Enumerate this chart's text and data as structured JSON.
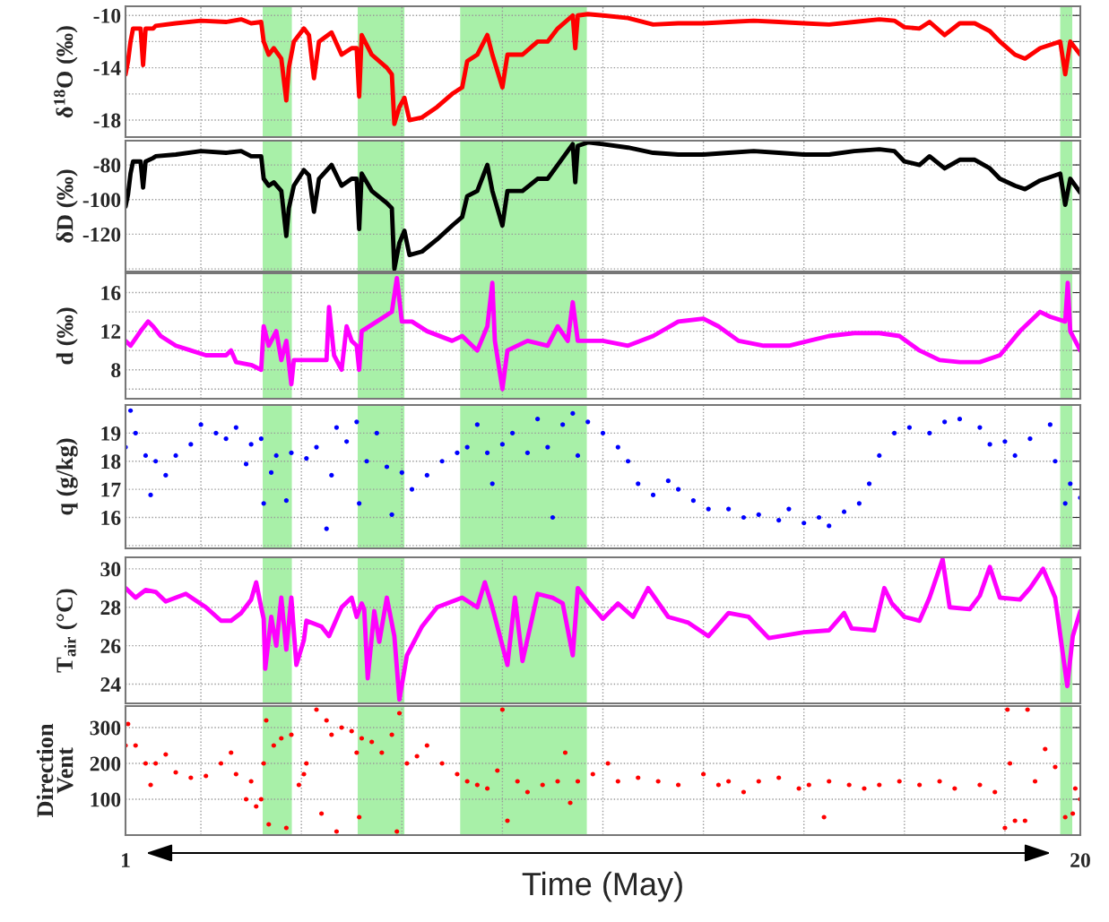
{
  "chart_data": [
    {
      "type": "line",
      "ylabel": "δ$^{18}$O (‰)",
      "xlim": [
        1,
        20
      ],
      "xticks": [
        {
          "value": 2.5,
          "label": null
        },
        {
          "value": 4.5,
          "label": null
        },
        {
          "value": 6.5,
          "label": null
        },
        {
          "value": 8.5,
          "label": null
        },
        {
          "value": 10.5,
          "label": null
        },
        {
          "value": 12.5,
          "label": null
        },
        {
          "value": 14.5,
          "label": null
        },
        {
          "value": 16.5,
          "label": null
        },
        {
          "value": 18.5,
          "label": null
        }
      ],
      "ylim": [
        -19.3,
        -9.3
      ],
      "yticks": [
        -18,
        {
          "value": -16,
          "label": null
        },
        -14,
        {
          "value": -12,
          "label": null
        },
        -10
      ],
      "grid": true,
      "tick_labels": "y",
      "line_style": "solid",
      "bands": [
        {
          "axis": "x",
          "from": 3.73,
          "to": 4.31,
          "label": null,
          "color": "#a8f0a8"
        },
        {
          "axis": "x",
          "from": 5.62,
          "to": 6.55,
          "label": null,
          "color": "#a8f0a8"
        },
        {
          "axis": "x",
          "from": 7.66,
          "to": 10.18,
          "label": null,
          "color": "#a8f0a8"
        },
        {
          "axis": "x",
          "from": 19.6,
          "to": 19.84,
          "label": null,
          "color": "#a8f0a8"
        }
      ],
      "x": [
        1.0,
        1.05,
        1.1,
        1.15,
        1.3,
        1.35,
        1.4,
        1.55,
        1.6,
        2.0,
        2.5,
        3.0,
        3.3,
        3.5,
        3.7,
        3.75,
        3.85,
        3.95,
        4.1,
        4.2,
        4.25,
        4.35,
        4.55,
        4.65,
        4.75,
        4.85,
        5.1,
        5.3,
        5.5,
        5.6,
        5.65,
        5.7,
        5.9,
        6.2,
        6.3,
        6.35,
        6.45,
        6.55,
        6.65,
        6.9,
        7.2,
        7.5,
        7.7,
        7.8,
        8.0,
        8.2,
        8.3,
        8.5,
        8.6,
        8.9,
        9.2,
        9.4,
        9.6,
        9.9,
        9.95,
        10.0,
        10.2,
        10.5,
        11,
        11.5,
        12,
        12.5,
        13,
        13.5,
        14,
        14.5,
        15,
        15.5,
        16,
        16.3,
        16.5,
        16.8,
        17.0,
        17.3,
        17.6,
        17.9,
        18.2,
        18.4,
        18.7,
        18.9,
        19.2,
        19.6,
        19.7,
        19.8,
        20.0
      ],
      "series": [
        {
          "color": "#ff0000",
          "values": [
            -14.5,
            -13.5,
            -12,
            -11,
            -11,
            -13.8,
            -11,
            -11,
            -10.8,
            -10.6,
            -10.4,
            -10.5,
            -10.3,
            -10.6,
            -10.5,
            -12,
            -13,
            -12.5,
            -13.3,
            -16.5,
            -14,
            -12,
            -11,
            -11.5,
            -14.8,
            -12,
            -11.3,
            -13,
            -12.5,
            -12.5,
            -16.2,
            -11.5,
            -13,
            -14,
            -14.5,
            -18.3,
            -17,
            -16.3,
            -18,
            -17.8,
            -17,
            -16,
            -15.5,
            -13.5,
            -13,
            -11.5,
            -13,
            -15.5,
            -13,
            -13,
            -12,
            -12,
            -11,
            -10,
            -12.5,
            -10,
            -9.9,
            -10,
            -10.2,
            -10.7,
            -10.6,
            -10.6,
            -10.5,
            -10.4,
            -10.5,
            -10.6,
            -10.7,
            -10.5,
            -10.3,
            -10.4,
            -10.9,
            -11,
            -10.5,
            -11.5,
            -10.6,
            -10.6,
            -11.2,
            -12,
            -13,
            -13.3,
            -12.5,
            -12,
            -14.5,
            -12,
            -13
          ]
        }
      ]
    },
    {
      "type": "line",
      "ylabel": "δD (‰)",
      "xlim": [
        1,
        20
      ],
      "xticks": [
        {
          "value": 2.5,
          "label": null
        },
        {
          "value": 4.5,
          "label": null
        },
        {
          "value": 6.5,
          "label": null
        },
        {
          "value": 8.5,
          "label": null
        },
        {
          "value": 10.5,
          "label": null
        },
        {
          "value": 12.5,
          "label": null
        },
        {
          "value": 14.5,
          "label": null
        },
        {
          "value": 16.5,
          "label": null
        },
        {
          "value": 18.5,
          "label": null
        }
      ],
      "ylim": [
        -141.5,
        -66
      ],
      "yticks": [
        {
          "value": -140,
          "label": null
        },
        -120,
        -100,
        -80
      ],
      "grid": true,
      "tick_labels": "y",
      "line_style": "solid",
      "bands": [
        {
          "axis": "x",
          "from": 3.73,
          "to": 4.31,
          "label": null,
          "color": "#a8f0a8"
        },
        {
          "axis": "x",
          "from": 5.62,
          "to": 6.55,
          "label": null,
          "color": "#a8f0a8"
        },
        {
          "axis": "x",
          "from": 7.66,
          "to": 10.18,
          "label": null,
          "color": "#a8f0a8"
        },
        {
          "axis": "x",
          "from": 19.6,
          "to": 19.84,
          "label": null,
          "color": "#a8f0a8"
        }
      ],
      "x": [
        1.0,
        1.05,
        1.1,
        1.15,
        1.3,
        1.35,
        1.4,
        1.55,
        1.6,
        2.0,
        2.5,
        3.0,
        3.3,
        3.5,
        3.7,
        3.75,
        3.85,
        3.95,
        4.1,
        4.2,
        4.25,
        4.35,
        4.55,
        4.65,
        4.75,
        4.85,
        5.1,
        5.3,
        5.5,
        5.6,
        5.65,
        5.7,
        5.9,
        6.2,
        6.3,
        6.35,
        6.45,
        6.55,
        6.65,
        6.9,
        7.2,
        7.5,
        7.7,
        7.8,
        8.0,
        8.2,
        8.3,
        8.5,
        8.6,
        8.9,
        9.2,
        9.4,
        9.6,
        9.9,
        9.95,
        10.0,
        10.2,
        10.5,
        11,
        11.5,
        12,
        12.5,
        13,
        13.5,
        14,
        14.5,
        15,
        15.5,
        16,
        16.3,
        16.5,
        16.8,
        17.0,
        17.3,
        17.6,
        17.9,
        18.2,
        18.4,
        18.7,
        18.9,
        19.2,
        19.6,
        19.7,
        19.8,
        20.0
      ],
      "series": [
        {
          "color": "#000000",
          "values": [
            -104,
            -97,
            -85,
            -78,
            -78,
            -93,
            -78,
            -76,
            -75,
            -74,
            -72,
            -73,
            -72,
            -75,
            -75,
            -88,
            -92,
            -90,
            -95,
            -121,
            -105,
            -92,
            -83,
            -86,
            -107,
            -88,
            -80,
            -92,
            -88,
            -88,
            -117,
            -85,
            -95,
            -102,
            -105,
            -140,
            -125,
            -118,
            -132,
            -130,
            -123,
            -115,
            -110,
            -98,
            -95,
            -80,
            -95,
            -115,
            -95,
            -95,
            -88,
            -88,
            -80,
            -68,
            -90,
            -69,
            -67,
            -68,
            -70,
            -73,
            -74,
            -74,
            -73,
            -72,
            -73,
            -74,
            -74,
            -72,
            -71,
            -72,
            -78,
            -80,
            -75,
            -82,
            -77,
            -77,
            -82,
            -88,
            -92,
            -94,
            -89,
            -85,
            -103,
            -88,
            -96
          ]
        }
      ]
    },
    {
      "type": "line",
      "ylabel": "d (‰)",
      "xlim": [
        1,
        20
      ],
      "xticks": [
        {
          "value": 2.5,
          "label": null
        },
        {
          "value": 4.5,
          "label": null
        },
        {
          "value": 6.5,
          "label": null
        },
        {
          "value": 8.5,
          "label": null
        },
        {
          "value": 10.5,
          "label": null
        },
        {
          "value": 12.5,
          "label": null
        },
        {
          "value": 14.5,
          "label": null
        },
        {
          "value": 16.5,
          "label": null
        },
        {
          "value": 18.5,
          "label": null
        }
      ],
      "ylim": [
        5,
        18
      ],
      "yticks": [
        {
          "value": 6,
          "label": null
        },
        8,
        {
          "value": 10,
          "label": null
        },
        12,
        {
          "value": 14,
          "label": null
        },
        16
      ],
      "grid": true,
      "tick_labels": "y",
      "line_style": "solid",
      "bands": [
        {
          "axis": "x",
          "from": 3.73,
          "to": 4.31,
          "label": null,
          "color": "#a8f0a8"
        },
        {
          "axis": "x",
          "from": 5.62,
          "to": 6.55,
          "label": null,
          "color": "#a8f0a8"
        },
        {
          "axis": "x",
          "from": 7.66,
          "to": 10.18,
          "label": null,
          "color": "#a8f0a8"
        },
        {
          "axis": "x",
          "from": 19.6,
          "to": 19.84,
          "label": null,
          "color": "#a8f0a8"
        }
      ],
      "x": [
        1.0,
        1.1,
        1.3,
        1.45,
        1.55,
        1.7,
        2.0,
        2.3,
        2.6,
        3.0,
        3.1,
        3.2,
        3.5,
        3.7,
        3.75,
        3.85,
        4.0,
        4.1,
        4.2,
        4.3,
        4.35,
        4.6,
        5.0,
        5.05,
        5.15,
        5.3,
        5.4,
        5.5,
        5.6,
        5.65,
        5.7,
        6.0,
        6.3,
        6.4,
        6.5,
        6.7,
        7.0,
        7.5,
        7.7,
        8.0,
        8.2,
        8.3,
        8.35,
        8.5,
        8.6,
        9.0,
        9.4,
        9.6,
        9.8,
        9.9,
        10.0,
        10.5,
        11,
        11.5,
        12.0,
        12.5,
        12.8,
        13.2,
        13.7,
        14.2,
        14.6,
        15,
        15.5,
        16,
        16.4,
        16.8,
        17.2,
        17.6,
        18,
        18.4,
        18.8,
        19.2,
        19.4,
        19.7,
        19.75,
        19.8,
        20.0
      ],
      "series": [
        {
          "color": "#ff00ff",
          "values": [
            11,
            10.5,
            12,
            13,
            12.5,
            11.5,
            10.5,
            10,
            9.5,
            9.5,
            10,
            8.8,
            8.5,
            8,
            12.5,
            10.5,
            12,
            9,
            11,
            6.5,
            9,
            9,
            9,
            14.5,
            9.5,
            8,
            12.5,
            11,
            10.5,
            8,
            12,
            13,
            14,
            17.5,
            13,
            13,
            12,
            11,
            11.5,
            10,
            12.5,
            17,
            11,
            6,
            10,
            11,
            10.5,
            12.5,
            11,
            15,
            11,
            11,
            10.5,
            11.5,
            13,
            13.3,
            12.5,
            11,
            10.5,
            10.5,
            11,
            11.5,
            11.8,
            11.8,
            11.5,
            10,
            9,
            8.8,
            8.8,
            9.5,
            12,
            14,
            13.5,
            13,
            17,
            12,
            10
          ]
        }
      ]
    },
    {
      "type": "scatter",
      "ylabel": "q (g/kg)",
      "xlim": [
        1,
        20
      ],
      "xticks": [
        {
          "value": 2.5,
          "label": null
        },
        {
          "value": 4.5,
          "label": null
        },
        {
          "value": 6.5,
          "label": null
        },
        {
          "value": 8.5,
          "label": null
        },
        {
          "value": 10.5,
          "label": null
        },
        {
          "value": 12.5,
          "label": null
        },
        {
          "value": 14.5,
          "label": null
        },
        {
          "value": 16.5,
          "label": null
        },
        {
          "value": 18.5,
          "label": null
        }
      ],
      "ylim": [
        14.9,
        20
      ],
      "yticks": [
        {
          "value": 15,
          "label": null
        },
        16,
        17,
        18,
        19
      ],
      "grid": true,
      "tick_labels": "y",
      "marker": "circle",
      "bands": [
        {
          "axis": "x",
          "from": 3.73,
          "to": 4.31,
          "label": null,
          "color": "#a8f0a8"
        },
        {
          "axis": "x",
          "from": 5.62,
          "to": 6.55,
          "label": null,
          "color": "#a8f0a8"
        },
        {
          "axis": "x",
          "from": 7.66,
          "to": 10.18,
          "label": null,
          "color": "#a8f0a8"
        },
        {
          "axis": "x",
          "from": 19.6,
          "to": 19.84,
          "label": null,
          "color": "#a8f0a8"
        }
      ],
      "x": [
        1.0,
        1.1,
        1.2,
        1.4,
        1.5,
        1.6,
        1.8,
        2.0,
        2.3,
        2.5,
        2.8,
        3.0,
        3.2,
        3.4,
        3.5,
        3.7,
        3.75,
        3.9,
        4.0,
        4.2,
        4.3,
        4.6,
        4.8,
        5.0,
        5.1,
        5.2,
        5.4,
        5.6,
        5.65,
        5.8,
        6.0,
        6.2,
        6.3,
        6.5,
        6.7,
        7.0,
        7.3,
        7.6,
        7.8,
        8.0,
        8.2,
        8.3,
        8.5,
        8.7,
        9.0,
        9.2,
        9.4,
        9.5,
        9.7,
        9.9,
        10.0,
        10.2,
        10.5,
        10.8,
        11,
        11.2,
        11.5,
        11.8,
        12,
        12.3,
        12.6,
        13,
        13.3,
        13.6,
        14,
        14.2,
        14.5,
        14.8,
        15,
        15.3,
        15.6,
        15.8,
        16,
        16.3,
        16.6,
        17,
        17.3,
        17.6,
        18,
        18.2,
        18.5,
        18.7,
        19.0,
        19.4,
        19.5,
        19.7,
        19.8,
        20.0
      ],
      "series": [
        {
          "color": "#0000ff",
          "values": [
            18.5,
            19.8,
            19,
            18.2,
            16.8,
            18,
            17.5,
            18.2,
            18.6,
            19.3,
            19,
            18.8,
            19.2,
            17.9,
            18.6,
            18.8,
            16.5,
            17.6,
            18.2,
            16.6,
            18.3,
            18.1,
            18.5,
            15.6,
            17.5,
            19.2,
            18.7,
            19.4,
            16.5,
            18,
            19,
            17.8,
            16.1,
            17.6,
            17,
            17.5,
            18,
            18.3,
            18.5,
            19.3,
            18.3,
            17.2,
            18.6,
            19,
            18.3,
            19.5,
            18.5,
            16,
            19.3,
            19.7,
            18.2,
            19.4,
            19,
            18.5,
            18,
            17.2,
            16.8,
            17.3,
            17,
            16.6,
            16.3,
            16.3,
            16,
            16.1,
            15.9,
            16.3,
            15.8,
            16,
            15.7,
            16.2,
            16.5,
            17.2,
            18.2,
            19,
            19.2,
            19,
            19.4,
            19.5,
            19.2,
            18.6,
            18.7,
            18.2,
            18.8,
            19.3,
            18,
            16.5,
            17.2,
            16.7
          ]
        }
      ]
    },
    {
      "type": "line",
      "ylabel": "T$_{air}$ (°C)",
      "xlim": [
        1,
        20
      ],
      "xticks": [
        {
          "value": 2.5,
          "label": null
        },
        {
          "value": 4.5,
          "label": null
        },
        {
          "value": 6.5,
          "label": null
        },
        {
          "value": 8.5,
          "label": null
        },
        {
          "value": 10.5,
          "label": null
        },
        {
          "value": 12.5,
          "label": null
        },
        {
          "value": 14.5,
          "label": null
        },
        {
          "value": 16.5,
          "label": null
        },
        {
          "value": 18.5,
          "label": null
        }
      ],
      "ylim": [
        23,
        30.6
      ],
      "yticks": [
        24,
        26,
        28,
        30
      ],
      "grid": true,
      "tick_labels": "y",
      "line_style": "solid",
      "bands": [
        {
          "axis": "x",
          "from": 3.73,
          "to": 4.31,
          "label": null,
          "color": "#a8f0a8"
        },
        {
          "axis": "x",
          "from": 5.62,
          "to": 6.55,
          "label": null,
          "color": "#a8f0a8"
        },
        {
          "axis": "x",
          "from": 7.66,
          "to": 10.18,
          "label": null,
          "color": "#a8f0a8"
        },
        {
          "axis": "x",
          "from": 19.6,
          "to": 19.84,
          "label": null,
          "color": "#a8f0a8"
        }
      ],
      "x": [
        1.0,
        1.2,
        1.4,
        1.6,
        1.8,
        2.2,
        2.6,
        2.9,
        3.1,
        3.3,
        3.5,
        3.6,
        3.7,
        3.75,
        3.78,
        3.9,
        4.0,
        4.1,
        4.2,
        4.3,
        4.4,
        4.55,
        4.6,
        4.9,
        5.05,
        5.3,
        5.5,
        5.6,
        5.7,
        5.75,
        5.82,
        5.95,
        6.05,
        6.2,
        6.35,
        6.45,
        6.6,
        6.9,
        7.2,
        7.5,
        7.7,
        8.0,
        8.15,
        8.3,
        8.6,
        8.75,
        8.9,
        9.2,
        9.5,
        9.7,
        9.9,
        10.0,
        10.2,
        10.5,
        10.8,
        11.1,
        11.4,
        11.8,
        12.2,
        12.6,
        13.0,
        13.4,
        13.8,
        14.5,
        15.0,
        15.3,
        15.45,
        15.9,
        16.1,
        16.25,
        16.5,
        16.8,
        17.0,
        17.26,
        17.4,
        17.8,
        18.0,
        18.2,
        18.4,
        18.8,
        19.0,
        19.26,
        19.5,
        19.74,
        19.85,
        20.0
      ],
      "series": [
        {
          "color": "#ff00ff",
          "values": [
            29,
            28.5,
            28.9,
            28.8,
            28.3,
            28.7,
            28,
            27.3,
            27.3,
            27.7,
            28.4,
            29.3,
            28,
            27.4,
            24.8,
            27.5,
            26,
            28.5,
            25.8,
            28.5,
            25,
            26.3,
            27.3,
            27,
            26.5,
            28,
            28.5,
            27.5,
            28.2,
            27.9,
            24.3,
            27.8,
            26.2,
            28.5,
            26.5,
            23.2,
            25.5,
            27,
            28,
            28.3,
            28.5,
            28,
            29.3,
            28,
            25,
            28.5,
            25.2,
            28.7,
            28.5,
            28.2,
            25.5,
            29,
            28.3,
            27.4,
            28.2,
            27.5,
            29,
            27.5,
            27.2,
            26.5,
            27.7,
            27.5,
            26.4,
            26.7,
            26.8,
            27.7,
            26.9,
            26.8,
            29.0,
            28.2,
            27.5,
            27.3,
            28.5,
            30.5,
            28.0,
            27.9,
            28.6,
            30.1,
            28.5,
            28.4,
            29.0,
            30.0,
            28.5,
            23.9,
            26.5,
            27.8
          ]
        }
      ]
    },
    {
      "type": "scatter",
      "ylabel": "Direction\nVent",
      "xlabel": "Time (May)",
      "xlim": [
        1,
        20
      ],
      "xticks": [
        {
          "value": 1,
          "label": "1"
        },
        {
          "value": 2.5,
          "label": null
        },
        {
          "value": 4.5,
          "label": null
        },
        {
          "value": 6.5,
          "label": null
        },
        {
          "value": 8.5,
          "label": null
        },
        {
          "value": 10.5,
          "label": null
        },
        {
          "value": 12.5,
          "label": null
        },
        {
          "value": 14.5,
          "label": null
        },
        {
          "value": 16.5,
          "label": null
        },
        {
          "value": 18.5,
          "label": null
        },
        {
          "value": 20,
          "label": "20"
        }
      ],
      "ylim": [
        0,
        360
      ],
      "yticks": [
        100,
        200,
        300
      ],
      "grid": true,
      "marker": "circle",
      "bands": [
        {
          "axis": "x",
          "from": 3.73,
          "to": 4.31,
          "label": null,
          "color": "#a8f0a8"
        },
        {
          "axis": "x",
          "from": 5.62,
          "to": 6.55,
          "label": null,
          "color": "#a8f0a8"
        },
        {
          "axis": "x",
          "from": 7.66,
          "to": 10.18,
          "label": null,
          "color": "#a8f0a8"
        },
        {
          "axis": "x",
          "from": 19.6,
          "to": 19.84,
          "label": null,
          "color": "#a8f0a8"
        }
      ],
      "x": [
        1.0,
        1.05,
        1.2,
        1.4,
        1.5,
        1.6,
        1.8,
        2.0,
        2.3,
        2.6,
        2.9,
        3.1,
        3.2,
        3.4,
        3.5,
        3.6,
        3.7,
        3.75,
        3.8,
        3.85,
        3.95,
        4.1,
        4.2,
        4.3,
        4.45,
        4.55,
        4.6,
        4.8,
        4.9,
        5.0,
        5.1,
        5.2,
        5.3,
        5.5,
        5.6,
        5.65,
        5.7,
        5.9,
        6.1,
        6.3,
        6.4,
        6.45,
        6.6,
        6.8,
        7.0,
        7.3,
        7.6,
        7.8,
        8.0,
        8.2,
        8.4,
        8.5,
        8.6,
        8.8,
        9.0,
        9.3,
        9.6,
        9.75,
        9.85,
        10.0,
        10.3,
        10.6,
        10.8,
        11.2,
        11.6,
        12,
        12.5,
        12.8,
        13.0,
        13.3,
        13.6,
        14.0,
        14.4,
        14.6,
        14.9,
        15.0,
        15.4,
        15.7,
        16.0,
        16.4,
        16.8,
        17.2,
        17.5,
        18.0,
        18.3,
        18.5,
        18.55,
        18.6,
        18.7,
        18.9,
        18.95,
        19.1,
        19.3,
        19.5,
        19.7,
        19.85,
        19.9,
        20.0
      ],
      "series": [
        {
          "color": "#ff0000",
          "values": [
            250,
            310,
            250,
            200,
            140,
            200,
            225,
            175,
            160,
            165,
            200,
            230,
            170,
            100,
            150,
            80,
            100,
            200,
            320,
            30,
            250,
            270,
            20,
            280,
            140,
            170,
            200,
            350,
            60,
            320,
            280,
            10,
            300,
            290,
            230,
            50,
            270,
            260,
            230,
            280,
            10,
            340,
            200,
            220,
            250,
            200,
            170,
            150,
            140,
            130,
            180,
            350,
            40,
            150,
            120,
            140,
            150,
            230,
            90,
            150,
            170,
            200,
            150,
            160,
            150,
            140,
            170,
            140,
            150,
            120,
            150,
            160,
            130,
            140,
            50,
            150,
            140,
            130,
            140,
            150,
            140,
            150,
            130,
            140,
            120,
            20,
            350,
            200,
            40,
            40,
            350,
            150,
            240,
            190,
            50,
            60,
            130,
            100
          ]
        }
      ]
    }
  ]
}
